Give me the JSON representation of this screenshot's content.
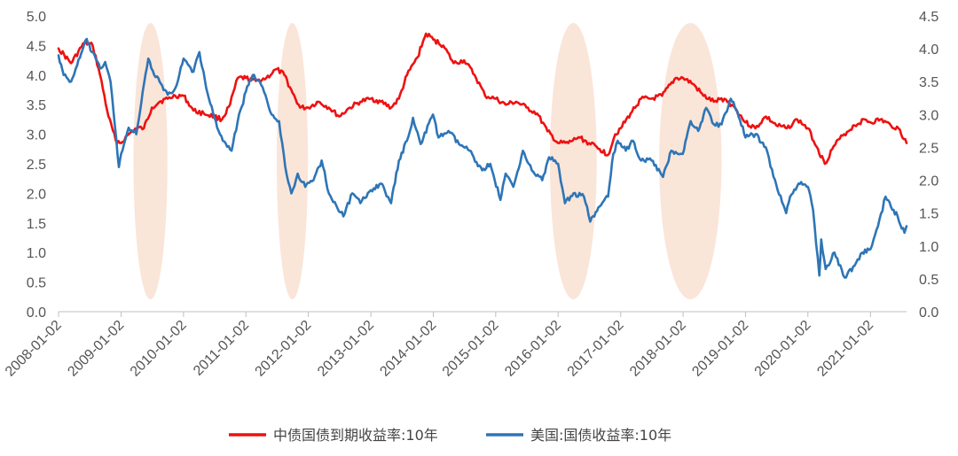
{
  "chart_data": {
    "type": "line",
    "title": "",
    "xlabel": "",
    "ylabel_left": "",
    "ylabel_right": "",
    "ylim_left": [
      0,
      5
    ],
    "ylim_right": [
      0,
      4.5
    ],
    "left_ticks": [
      "0.0",
      "0.5",
      "1.0",
      "1.5",
      "2.0",
      "2.5",
      "3.0",
      "3.5",
      "4.0",
      "4.5",
      "5.0"
    ],
    "right_ticks": [
      "0.0",
      "0.5",
      "1.0",
      "1.5",
      "2.0",
      "2.5",
      "3.0",
      "3.5",
      "4.0",
      "4.5"
    ],
    "x_ticks": [
      "2008-01-02",
      "2009-01-02",
      "2010-01-02",
      "2011-01-02",
      "2012-01-02",
      "2013-01-02",
      "2014-01-02",
      "2015-01-02",
      "2016-01-02",
      "2017-01-02",
      "2018-01-02",
      "2019-01-02",
      "2020-01-02",
      "2021-01-02"
    ],
    "x_range": [
      "2008-01-02",
      "2021-08-01"
    ],
    "grid": false,
    "legend_position": "bottom",
    "highlight_periods": [
      {
        "start": "2009-03-15",
        "end": "2009-09-30"
      },
      {
        "start": "2011-07-01",
        "end": "2011-12-31"
      },
      {
        "start": "2015-11-15",
        "end": "2016-08-15"
      },
      {
        "start": "2017-08-15",
        "end": "2018-08-15"
      }
    ],
    "series": [
      {
        "name": "中债国债到期收益率:10年",
        "axis": "left",
        "color": "#ee1111",
        "points": [
          [
            "2008-01-02",
            4.45
          ],
          [
            "2008-03-15",
            4.2
          ],
          [
            "2008-06-01",
            4.55
          ],
          [
            "2008-07-20",
            4.5
          ],
          [
            "2008-09-01",
            4.0
          ],
          [
            "2008-10-20",
            3.3
          ],
          [
            "2008-12-01",
            2.9
          ],
          [
            "2009-01-02",
            2.85
          ],
          [
            "2009-02-15",
            3.0
          ],
          [
            "2009-04-01",
            3.1
          ],
          [
            "2009-05-15",
            3.1
          ],
          [
            "2009-07-01",
            3.45
          ],
          [
            "2009-08-15",
            3.55
          ],
          [
            "2009-10-01",
            3.6
          ],
          [
            "2009-11-15",
            3.65
          ],
          [
            "2010-01-02",
            3.65
          ],
          [
            "2010-03-01",
            3.4
          ],
          [
            "2010-05-01",
            3.35
          ],
          [
            "2010-07-01",
            3.3
          ],
          [
            "2010-08-15",
            3.25
          ],
          [
            "2010-10-01",
            3.5
          ],
          [
            "2010-11-15",
            3.95
          ],
          [
            "2011-01-02",
            3.95
          ],
          [
            "2011-03-01",
            3.9
          ],
          [
            "2011-05-01",
            3.95
          ],
          [
            "2011-07-01",
            4.1
          ],
          [
            "2011-08-15",
            4.0
          ],
          [
            "2011-10-01",
            3.7
          ],
          [
            "2011-11-15",
            3.45
          ],
          [
            "2012-01-02",
            3.45
          ],
          [
            "2012-03-01",
            3.55
          ],
          [
            "2012-05-01",
            3.45
          ],
          [
            "2012-07-01",
            3.3
          ],
          [
            "2012-09-01",
            3.45
          ],
          [
            "2012-11-01",
            3.55
          ],
          [
            "2013-01-02",
            3.6
          ],
          [
            "2013-03-01",
            3.55
          ],
          [
            "2013-05-01",
            3.45
          ],
          [
            "2013-06-15",
            3.6
          ],
          [
            "2013-08-01",
            4.0
          ],
          [
            "2013-10-01",
            4.3
          ],
          [
            "2013-11-20",
            4.7
          ],
          [
            "2014-01-02",
            4.6
          ],
          [
            "2014-03-01",
            4.5
          ],
          [
            "2014-05-01",
            4.2
          ],
          [
            "2014-07-01",
            4.25
          ],
          [
            "2014-09-01",
            4.0
          ],
          [
            "2014-11-01",
            3.65
          ],
          [
            "2015-01-02",
            3.6
          ],
          [
            "2015-03-01",
            3.5
          ],
          [
            "2015-05-01",
            3.55
          ],
          [
            "2015-07-01",
            3.45
          ],
          [
            "2015-09-01",
            3.35
          ],
          [
            "2015-11-01",
            3.05
          ],
          [
            "2016-01-02",
            2.85
          ],
          [
            "2016-03-01",
            2.85
          ],
          [
            "2016-05-01",
            2.95
          ],
          [
            "2016-07-01",
            2.85
          ],
          [
            "2016-09-01",
            2.75
          ],
          [
            "2016-10-20",
            2.65
          ],
          [
            "2016-12-01",
            3.0
          ],
          [
            "2017-01-02",
            3.1
          ],
          [
            "2017-03-01",
            3.35
          ],
          [
            "2017-05-01",
            3.6
          ],
          [
            "2017-07-01",
            3.6
          ],
          [
            "2017-09-01",
            3.65
          ],
          [
            "2017-11-20",
            3.95
          ],
          [
            "2018-01-02",
            3.95
          ],
          [
            "2018-03-01",
            3.85
          ],
          [
            "2018-05-01",
            3.65
          ],
          [
            "2018-07-01",
            3.55
          ],
          [
            "2018-09-01",
            3.6
          ],
          [
            "2018-11-01",
            3.45
          ],
          [
            "2019-01-02",
            3.2
          ],
          [
            "2019-03-01",
            3.1
          ],
          [
            "2019-05-01",
            3.3
          ],
          [
            "2019-07-01",
            3.15
          ],
          [
            "2019-09-01",
            3.1
          ],
          [
            "2019-11-01",
            3.25
          ],
          [
            "2020-01-02",
            3.1
          ],
          [
            "2020-03-01",
            2.75
          ],
          [
            "2020-04-10",
            2.5
          ],
          [
            "2020-06-01",
            2.8
          ],
          [
            "2020-08-01",
            3.0
          ],
          [
            "2020-10-01",
            3.15
          ],
          [
            "2020-12-01",
            3.25
          ],
          [
            "2021-01-02",
            3.2
          ],
          [
            "2021-03-01",
            3.25
          ],
          [
            "2021-05-01",
            3.15
          ],
          [
            "2021-06-15",
            3.1
          ],
          [
            "2021-08-01",
            2.85
          ]
        ]
      },
      {
        "name": "美国:国债收益率:10年",
        "axis": "right",
        "color": "#2e75b6",
        "points": [
          [
            "2008-01-02",
            3.9
          ],
          [
            "2008-02-01",
            3.6
          ],
          [
            "2008-03-15",
            3.5
          ],
          [
            "2008-04-20",
            3.75
          ],
          [
            "2008-06-15",
            4.15
          ],
          [
            "2008-07-15",
            3.95
          ],
          [
            "2008-09-01",
            3.7
          ],
          [
            "2008-10-01",
            3.8
          ],
          [
            "2008-11-01",
            3.5
          ],
          [
            "2008-12-20",
            2.2
          ],
          [
            "2009-01-02",
            2.4
          ],
          [
            "2009-02-15",
            2.8
          ],
          [
            "2009-04-01",
            2.7
          ],
          [
            "2009-05-01",
            3.2
          ],
          [
            "2009-06-10",
            3.85
          ],
          [
            "2009-07-15",
            3.6
          ],
          [
            "2009-08-15",
            3.5
          ],
          [
            "2009-10-01",
            3.3
          ],
          [
            "2009-11-15",
            3.4
          ],
          [
            "2010-01-02",
            3.85
          ],
          [
            "2010-03-01",
            3.65
          ],
          [
            "2010-04-05",
            3.95
          ],
          [
            "2010-05-15",
            3.4
          ],
          [
            "2010-07-01",
            2.95
          ],
          [
            "2010-08-20",
            2.6
          ],
          [
            "2010-10-10",
            2.45
          ],
          [
            "2010-11-15",
            2.9
          ],
          [
            "2011-01-02",
            3.35
          ],
          [
            "2011-02-10",
            3.6
          ],
          [
            "2011-04-01",
            3.45
          ],
          [
            "2011-06-01",
            3.0
          ],
          [
            "2011-07-15",
            2.9
          ],
          [
            "2011-08-20",
            2.2
          ],
          [
            "2011-09-25",
            1.8
          ],
          [
            "2011-11-01",
            2.1
          ],
          [
            "2011-12-15",
            1.9
          ],
          [
            "2012-02-01",
            2.0
          ],
          [
            "2012-03-20",
            2.3
          ],
          [
            "2012-05-01",
            1.8
          ],
          [
            "2012-07-25",
            1.45
          ],
          [
            "2012-09-15",
            1.8
          ],
          [
            "2012-11-01",
            1.65
          ],
          [
            "2013-01-02",
            1.85
          ],
          [
            "2013-03-01",
            1.95
          ],
          [
            "2013-04-30",
            1.65
          ],
          [
            "2013-06-15",
            2.3
          ],
          [
            "2013-08-01",
            2.6
          ],
          [
            "2013-09-05",
            2.95
          ],
          [
            "2013-10-20",
            2.55
          ],
          [
            "2013-12-31",
            3.0
          ],
          [
            "2014-02-01",
            2.65
          ],
          [
            "2014-04-01",
            2.75
          ],
          [
            "2014-06-01",
            2.55
          ],
          [
            "2014-08-01",
            2.45
          ],
          [
            "2014-10-15",
            2.15
          ],
          [
            "2014-12-01",
            2.25
          ],
          [
            "2015-01-30",
            1.7
          ],
          [
            "2015-03-01",
            2.1
          ],
          [
            "2015-04-15",
            1.9
          ],
          [
            "2015-06-10",
            2.45
          ],
          [
            "2015-08-01",
            2.15
          ],
          [
            "2015-10-01",
            2.0
          ],
          [
            "2015-11-10",
            2.35
          ],
          [
            "2016-01-02",
            2.25
          ],
          [
            "2016-02-11",
            1.65
          ],
          [
            "2016-04-01",
            1.8
          ],
          [
            "2016-06-01",
            1.75
          ],
          [
            "2016-07-08",
            1.37
          ],
          [
            "2016-09-01",
            1.6
          ],
          [
            "2016-10-20",
            1.75
          ],
          [
            "2016-11-20",
            2.4
          ],
          [
            "2016-12-15",
            2.6
          ],
          [
            "2017-02-01",
            2.45
          ],
          [
            "2017-03-15",
            2.6
          ],
          [
            "2017-05-01",
            2.3
          ],
          [
            "2017-07-01",
            2.3
          ],
          [
            "2017-09-07",
            2.05
          ],
          [
            "2017-10-25",
            2.45
          ],
          [
            "2017-12-31",
            2.4
          ],
          [
            "2018-02-15",
            2.9
          ],
          [
            "2018-04-01",
            2.75
          ],
          [
            "2018-05-17",
            3.1
          ],
          [
            "2018-07-01",
            2.85
          ],
          [
            "2018-08-15",
            2.85
          ],
          [
            "2018-10-08",
            3.24
          ],
          [
            "2018-11-15",
            3.05
          ],
          [
            "2019-01-02",
            2.65
          ],
          [
            "2019-03-01",
            2.7
          ],
          [
            "2019-05-01",
            2.5
          ],
          [
            "2019-06-15",
            2.05
          ],
          [
            "2019-08-28",
            1.5
          ],
          [
            "2019-09-20",
            1.75
          ],
          [
            "2019-11-08",
            1.95
          ],
          [
            "2020-01-02",
            1.9
          ],
          [
            "2020-02-01",
            1.55
          ],
          [
            "2020-03-09",
            0.55
          ],
          [
            "2020-03-20",
            1.1
          ],
          [
            "2020-04-15",
            0.65
          ],
          [
            "2020-06-05",
            0.9
          ],
          [
            "2020-08-04",
            0.52
          ],
          [
            "2020-10-01",
            0.7
          ],
          [
            "2020-11-15",
            0.9
          ],
          [
            "2021-01-02",
            0.95
          ],
          [
            "2021-02-15",
            1.3
          ],
          [
            "2021-03-31",
            1.75
          ],
          [
            "2021-05-01",
            1.6
          ],
          [
            "2021-06-10",
            1.45
          ],
          [
            "2021-07-20",
            1.2
          ],
          [
            "2021-08-01",
            1.3
          ]
        ]
      }
    ]
  }
}
